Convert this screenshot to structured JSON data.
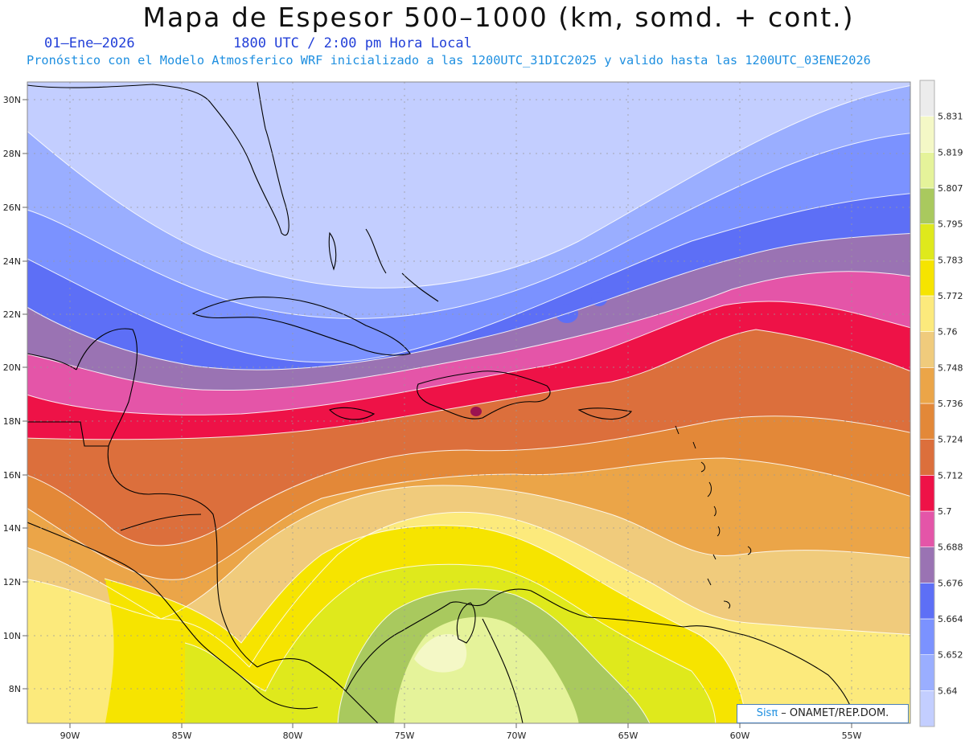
{
  "header": {
    "title": "Mapa de Espesor 500–1000 (km, somd. + cont.)",
    "date": "01–Ene–2026",
    "time": "1800 UTC / 2:00 pm Hora Local",
    "forecast": "Pronóstico con el Modelo Atmosferico WRF inicializado a las 1200UTC_31DIC2025 y valido hasta las  1200UTC_03ENE2026"
  },
  "axes": {
    "lat_labels": [
      "30N",
      "28N",
      "26N",
      "24N",
      "22N",
      "20N",
      "18N",
      "16N",
      "14N",
      "12N",
      "10N",
      "8N"
    ],
    "lon_labels": [
      "90W",
      "85W",
      "80W",
      "75W",
      "70W",
      "65W",
      "60W",
      "55W"
    ]
  },
  "colorbar": {
    "levels": [
      "5.64",
      "5.652",
      "5.664",
      "5.676",
      "5.688",
      "5.7",
      "5.712",
      "5.724",
      "5.736",
      "5.748",
      "5.76",
      "5.772",
      "5.783",
      "5.795",
      "5.807",
      "5.819",
      "5.831"
    ],
    "colors": [
      "#c3ceff",
      "#9aaeff",
      "#7b92ff",
      "#5d6ff6",
      "#9a73b3",
      "#e455a8",
      "#ee1247",
      "#dc6f3c",
      "#e38838",
      "#eba548",
      "#f0cb7c",
      "#fcea7c",
      "#f6e400",
      "#dfe91c",
      "#a9c95e",
      "#e5f39a",
      "#f4f8c6",
      "#ececec"
    ]
  },
  "credit": {
    "sis": "Sisπ",
    "rest": " – ONAMET/REP.DOM."
  },
  "colors": {
    "title_blue": "#2340d8",
    "forecast_blue": "#1e8fe0",
    "frame": "#8a8a8a"
  }
}
